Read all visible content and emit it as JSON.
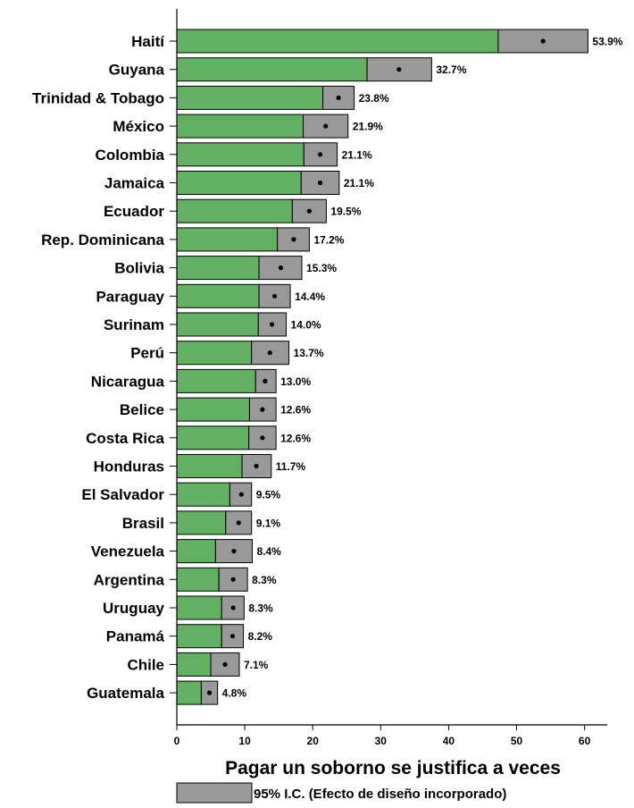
{
  "chart_data": {
    "type": "bar",
    "categories": [
      "Haití",
      "Guyana",
      "Trinidad & Tobago",
      "México",
      "Colombia",
      "Jamaica",
      "Ecuador",
      "Rep. Dominicana",
      "Bolivia",
      "Paraguay",
      "Surinam",
      "Perú",
      "Nicaragua",
      "Belice",
      "Costa Rica",
      "Honduras",
      "El Salvador",
      "Brasil",
      "Venezuela",
      "Argentina",
      "Uruguay",
      "Panamá",
      "Chile",
      "Guatemala"
    ],
    "values": [
      53.9,
      32.7,
      23.8,
      21.9,
      21.1,
      21.1,
      19.5,
      17.2,
      15.3,
      14.4,
      14.0,
      13.7,
      13.0,
      12.6,
      12.6,
      11.7,
      9.5,
      9.1,
      8.4,
      8.3,
      8.3,
      8.2,
      7.1,
      4.8
    ],
    "ci_low": [
      47.3,
      28.0,
      21.5,
      18.6,
      18.7,
      18.3,
      17.0,
      14.8,
      12.1,
      12.1,
      12.0,
      11.0,
      11.6,
      10.7,
      10.6,
      9.6,
      7.8,
      7.2,
      5.7,
      6.2,
      6.6,
      6.6,
      5.0,
      3.6
    ],
    "ci_high": [
      60.5,
      37.5,
      26.1,
      25.2,
      23.6,
      23.9,
      22.0,
      19.5,
      18.4,
      16.7,
      16.1,
      16.5,
      14.6,
      14.6,
      14.6,
      13.9,
      11.0,
      11.0,
      11.1,
      10.4,
      9.9,
      9.8,
      9.2,
      6.0
    ],
    "value_labels": [
      "53.9%",
      "32.7%",
      "23.8%",
      "21.9%",
      "21.1%",
      "21.1%",
      "19.5%",
      "17.2%",
      "15.3%",
      "14.4%",
      "14.0%",
      "13.7%",
      "13.0%",
      "12.6%",
      "12.6%",
      "11.7%",
      "9.5%",
      "9.1%",
      "8.4%",
      "8.3%",
      "8.3%",
      "8.2%",
      "7.1%",
      "4.8%"
    ],
    "xlabel": "Pagar un soborno se justifica a veces",
    "xlim": [
      0,
      64
    ],
    "xticks": [
      0,
      10,
      20,
      30,
      40,
      50,
      60
    ],
    "xtick_labels": [
      "0",
      "10",
      "20",
      "30",
      "40",
      "50",
      "60"
    ],
    "legend": {
      "label": "95% I.C. (Efecto de diseño incorporado)",
      "placement": "bottom"
    },
    "colors": {
      "bar": "#62b162",
      "ci": "#999999",
      "outline": "#000000",
      "point": "#000000"
    },
    "grid": false
  }
}
